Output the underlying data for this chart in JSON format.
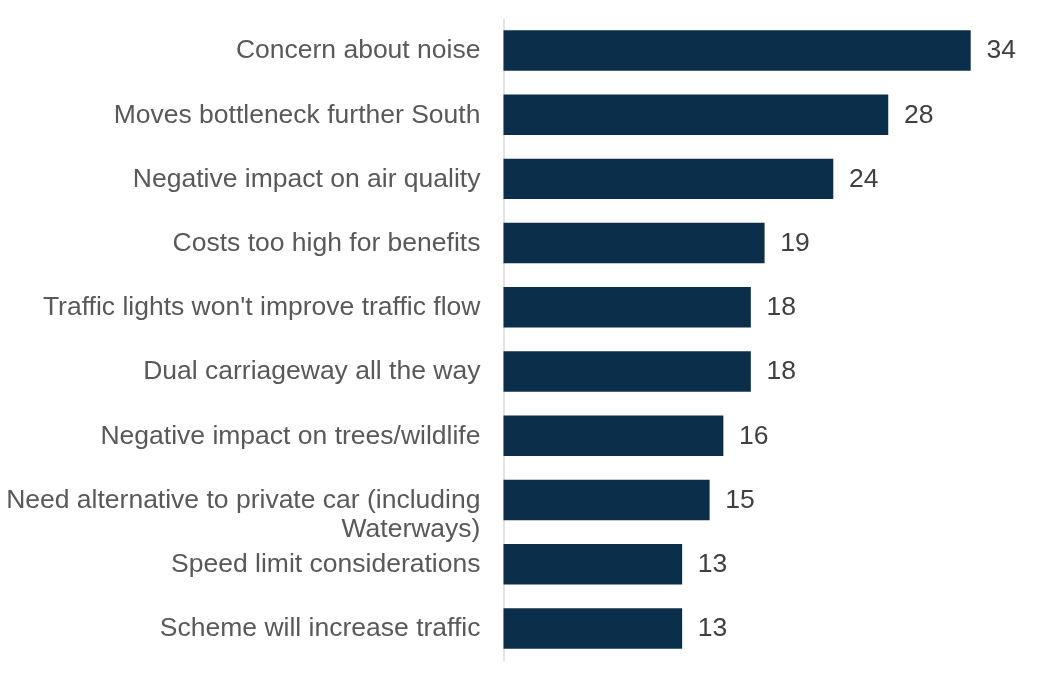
{
  "chart_data": {
    "type": "bar",
    "orientation": "horizontal",
    "data_labels": true,
    "grid": false,
    "legend": false,
    "categories": [
      "Concern about noise",
      "Moves bottleneck further South",
      "Negative impact on air quality",
      "Costs too high for benefits",
      "Traffic lights won't improve traffic flow",
      "Dual carriageway all the way",
      "Negative impact on trees/wildlife",
      "Need alternative to private car (including Waterways)",
      "Speed limit considerations",
      "Scheme will increase traffic"
    ],
    "values": [
      34,
      28,
      24,
      19,
      18,
      18,
      16,
      15,
      13,
      13
    ],
    "color": "#0b2f4a"
  }
}
